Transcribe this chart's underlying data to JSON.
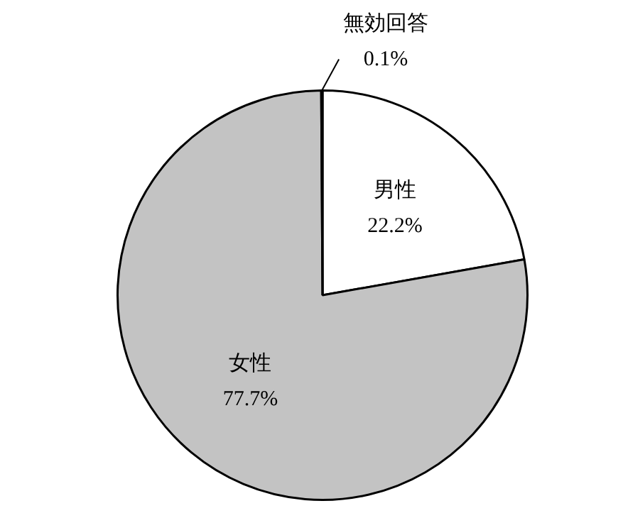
{
  "chart_data": {
    "type": "pie",
    "categories": [
      "男性",
      "女性",
      "無効回答"
    ],
    "values": [
      22.2,
      77.7,
      0.1
    ],
    "colors": [
      "#ffffff",
      "#c3c3c3",
      "#ffffff"
    ],
    "value_labels": [
      "22.2%",
      "77.7%",
      "0.1%"
    ],
    "legend": false
  }
}
